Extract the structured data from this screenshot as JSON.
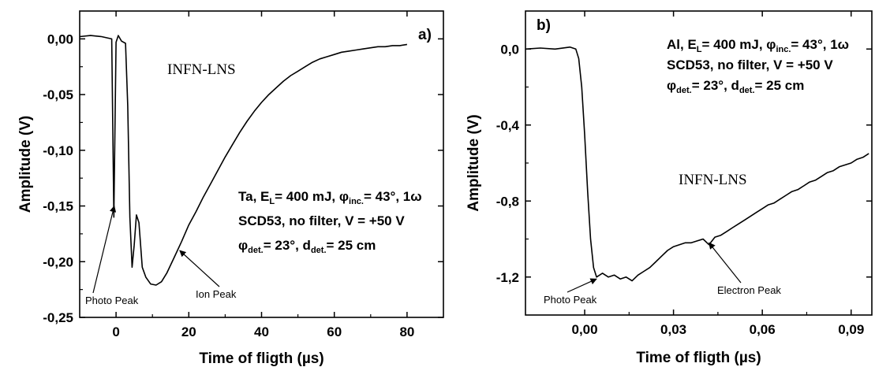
{
  "chart_data": [
    {
      "panel_label": "a)",
      "type": "line",
      "xlabel": "Time of fligth (µs)",
      "ylabel": "Amplitude (V)",
      "xlim": [
        -10,
        90
      ],
      "ylim": [
        -0.25,
        0.025
      ],
      "x_ticks": [
        0,
        20,
        40,
        60,
        80
      ],
      "x_tick_labels": [
        "0",
        "20",
        "40",
        "60",
        "80"
      ],
      "y_ticks": [
        0.0,
        -0.05,
        -0.1,
        -0.15,
        -0.2,
        -0.25
      ],
      "y_tick_labels": [
        "0,00",
        "-0,05",
        "-0,10",
        "-0,15",
        "-0,20",
        "-0,25"
      ],
      "watermark": "INFN-LNS",
      "info_lines": [
        [
          "Ta, E",
          "L",
          "= 400 mJ, φ",
          "inc.",
          "= 43°, 1ω"
        ],
        [
          "SCD53, no filter, V = +50 V"
        ],
        [
          "φ",
          "det.",
          "= 23°, d",
          "det.",
          "= 25 cm"
        ]
      ],
      "annotations": [
        {
          "text": "Photo Peak",
          "point": [
            -0.5,
            -0.15
          ]
        },
        {
          "text": "Ion Peak",
          "point": [
            17.5,
            -0.19
          ]
        }
      ],
      "series": [
        {
          "values": [
            [
              -10,
              0.002
            ],
            [
              -7,
              0.003
            ],
            [
              -4,
              0.002
            ],
            [
              -1.2,
              0.0
            ],
            [
              -0.6,
              -0.16
            ],
            [
              0.0,
              -0.003
            ],
            [
              0.6,
              0.003
            ],
            [
              1.5,
              -0.002
            ],
            [
              2.6,
              -0.004
            ],
            [
              3.2,
              -0.06
            ],
            [
              3.8,
              -0.16
            ],
            [
              4.4,
              -0.205
            ],
            [
              5.0,
              -0.185
            ],
            [
              5.6,
              -0.158
            ],
            [
              6.3,
              -0.165
            ],
            [
              7.2,
              -0.205
            ],
            [
              8.2,
              -0.214
            ],
            [
              9.5,
              -0.22
            ],
            [
              11.0,
              -0.221
            ],
            [
              12.5,
              -0.218
            ],
            [
              14.0,
              -0.21
            ],
            [
              16.0,
              -0.196
            ],
            [
              18.0,
              -0.182
            ],
            [
              20.0,
              -0.167
            ],
            [
              22.0,
              -0.155
            ],
            [
              24.0,
              -0.142
            ],
            [
              26.0,
              -0.13
            ],
            [
              28.0,
              -0.118
            ],
            [
              30.0,
              -0.106
            ],
            [
              32.0,
              -0.095
            ],
            [
              34.0,
              -0.084
            ],
            [
              36.0,
              -0.074
            ],
            [
              38.0,
              -0.065
            ],
            [
              40.0,
              -0.057
            ],
            [
              42.0,
              -0.05
            ],
            [
              44.0,
              -0.044
            ],
            [
              46.0,
              -0.038
            ],
            [
              48.0,
              -0.033
            ],
            [
              50.0,
              -0.029
            ],
            [
              52.0,
              -0.025
            ],
            [
              54.0,
              -0.021
            ],
            [
              56.0,
              -0.018
            ],
            [
              58.0,
              -0.016
            ],
            [
              60.0,
              -0.014
            ],
            [
              62.0,
              -0.012
            ],
            [
              64.0,
              -0.011
            ],
            [
              66.0,
              -0.01
            ],
            [
              68.0,
              -0.009
            ],
            [
              70.0,
              -0.008
            ],
            [
              72.0,
              -0.007
            ],
            [
              74.0,
              -0.007
            ],
            [
              76.0,
              -0.006
            ],
            [
              78.0,
              -0.006
            ],
            [
              80.0,
              -0.005
            ]
          ]
        }
      ]
    },
    {
      "panel_label": "b)",
      "type": "line",
      "xlabel": "Time of fligth (µs)",
      "ylabel": "Amplitude (V)",
      "xlim": [
        -0.02,
        0.097
      ],
      "ylim": [
        -1.4,
        0.2
      ],
      "x_ticks": [
        0.0,
        0.03,
        0.06,
        0.09
      ],
      "x_tick_labels": [
        "0,00",
        "0,03",
        "0,06",
        "0,09"
      ],
      "y_ticks": [
        0.0,
        -0.4,
        -0.8,
        -1.2
      ],
      "y_tick_labels": [
        "0,0",
        "-0,4",
        "-0,8",
        "-1,2"
      ],
      "watermark": "INFN-LNS",
      "info_lines": [
        [
          "Al, E",
          "L",
          "= 400 mJ, φ",
          "inc.",
          "= 43°, 1ω"
        ],
        [
          "SCD53, no filter, V = +50 V"
        ],
        [
          "φ",
          "det.",
          "= 23°, d",
          "det.",
          "= 25 cm"
        ]
      ],
      "annotations": [
        {
          "text": "Photo Peak",
          "point": [
            0.004,
            -1.21
          ]
        },
        {
          "text": "Electron Peak",
          "point": [
            0.042,
            -1.02
          ]
        }
      ],
      "series": [
        {
          "values": [
            [
              -0.02,
              0.0
            ],
            [
              -0.015,
              0.005
            ],
            [
              -0.01,
              0.0
            ],
            [
              -0.005,
              0.01
            ],
            [
              -0.003,
              0.0
            ],
            [
              -0.002,
              -0.05
            ],
            [
              -0.001,
              -0.2
            ],
            [
              0.0,
              -0.45
            ],
            [
              0.001,
              -0.75
            ],
            [
              0.002,
              -1.0
            ],
            [
              0.003,
              -1.15
            ],
            [
              0.004,
              -1.2
            ],
            [
              0.006,
              -1.18
            ],
            [
              0.008,
              -1.2
            ],
            [
              0.01,
              -1.19
            ],
            [
              0.012,
              -1.21
            ],
            [
              0.014,
              -1.2
            ],
            [
              0.016,
              -1.22
            ],
            [
              0.018,
              -1.19
            ],
            [
              0.02,
              -1.17
            ],
            [
              0.022,
              -1.15
            ],
            [
              0.024,
              -1.12
            ],
            [
              0.026,
              -1.09
            ],
            [
              0.028,
              -1.06
            ],
            [
              0.03,
              -1.04
            ],
            [
              0.032,
              -1.03
            ],
            [
              0.034,
              -1.02
            ],
            [
              0.036,
              -1.02
            ],
            [
              0.038,
              -1.01
            ],
            [
              0.04,
              -1.0
            ],
            [
              0.042,
              -1.03
            ],
            [
              0.044,
              -0.99
            ],
            [
              0.046,
              -0.98
            ],
            [
              0.048,
              -0.96
            ],
            [
              0.05,
              -0.94
            ],
            [
              0.052,
              -0.92
            ],
            [
              0.054,
              -0.9
            ],
            [
              0.056,
              -0.88
            ],
            [
              0.058,
              -0.86
            ],
            [
              0.06,
              -0.84
            ],
            [
              0.062,
              -0.82
            ],
            [
              0.064,
              -0.81
            ],
            [
              0.066,
              -0.79
            ],
            [
              0.068,
              -0.77
            ],
            [
              0.07,
              -0.75
            ],
            [
              0.072,
              -0.74
            ],
            [
              0.074,
              -0.72
            ],
            [
              0.076,
              -0.7
            ],
            [
              0.078,
              -0.69
            ],
            [
              0.08,
              -0.67
            ],
            [
              0.082,
              -0.65
            ],
            [
              0.084,
              -0.64
            ],
            [
              0.086,
              -0.62
            ],
            [
              0.088,
              -0.61
            ],
            [
              0.09,
              -0.6
            ],
            [
              0.092,
              -0.58
            ],
            [
              0.094,
              -0.57
            ],
            [
              0.096,
              -0.55
            ]
          ]
        }
      ]
    }
  ]
}
